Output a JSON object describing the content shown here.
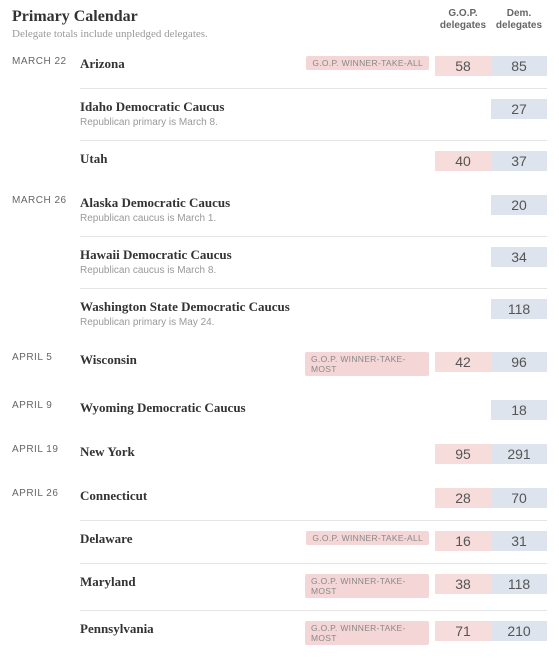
{
  "header": {
    "title": "Primary Calendar",
    "subtitle": "Delegate totals include unpledged delegates.",
    "gop_col": "G.O.P. delegates",
    "dem_col": "Dem. delegates"
  },
  "colors": {
    "gop_bg": "#f7dcdc",
    "dem_bg": "#dde4ed",
    "badge_bg": "#f4d6d6",
    "text_muted": "#999999",
    "text_body": "#333333",
    "border": "#e5e5e5"
  },
  "groups": [
    {
      "date": "MARCH 22",
      "contests": [
        {
          "name": "Arizona",
          "note": "",
          "badge": "G.O.P. WINNER-TAKE-ALL",
          "gop": "58",
          "dem": "85"
        },
        {
          "name": "Idaho Democratic Caucus",
          "note": "Republican primary is March 8.",
          "badge": "",
          "gop": "",
          "dem": "27"
        },
        {
          "name": "Utah",
          "note": "",
          "badge": "",
          "gop": "40",
          "dem": "37"
        }
      ]
    },
    {
      "date": "MARCH 26",
      "contests": [
        {
          "name": "Alaska Democratic Caucus",
          "note": "Republican caucus is March 1.",
          "badge": "",
          "gop": "",
          "dem": "20"
        },
        {
          "name": "Hawaii Democratic Caucus",
          "note": "Republican caucus is March 8.",
          "badge": "",
          "gop": "",
          "dem": "34"
        },
        {
          "name": "Washington State Democratic Caucus",
          "note": "Republican primary is May 24.",
          "badge": "",
          "gop": "",
          "dem": "118"
        }
      ]
    },
    {
      "date": "APRIL 5",
      "contests": [
        {
          "name": "Wisconsin",
          "note": "",
          "badge": "G.O.P. WINNER-TAKE-MOST",
          "gop": "42",
          "dem": "96"
        }
      ]
    },
    {
      "date": "APRIL 9",
      "contests": [
        {
          "name": "Wyoming Democratic Caucus",
          "note": "",
          "badge": "",
          "gop": "",
          "dem": "18"
        }
      ]
    },
    {
      "date": "APRIL 19",
      "contests": [
        {
          "name": "New York",
          "note": "",
          "badge": "",
          "gop": "95",
          "dem": "291"
        }
      ]
    },
    {
      "date": "APRIL 26",
      "contests": [
        {
          "name": "Connecticut",
          "note": "",
          "badge": "",
          "gop": "28",
          "dem": "70"
        },
        {
          "name": "Delaware",
          "note": "",
          "badge": "G.O.P. WINNER-TAKE-ALL",
          "gop": "16",
          "dem": "31"
        },
        {
          "name": "Maryland",
          "note": "",
          "badge": "G.O.P. WINNER-TAKE-MOST",
          "gop": "38",
          "dem": "118"
        },
        {
          "name": "Pennsylvania",
          "note": "",
          "badge": "G.O.P. WINNER-TAKE-MOST",
          "gop": "71",
          "dem": "210"
        }
      ]
    }
  ]
}
